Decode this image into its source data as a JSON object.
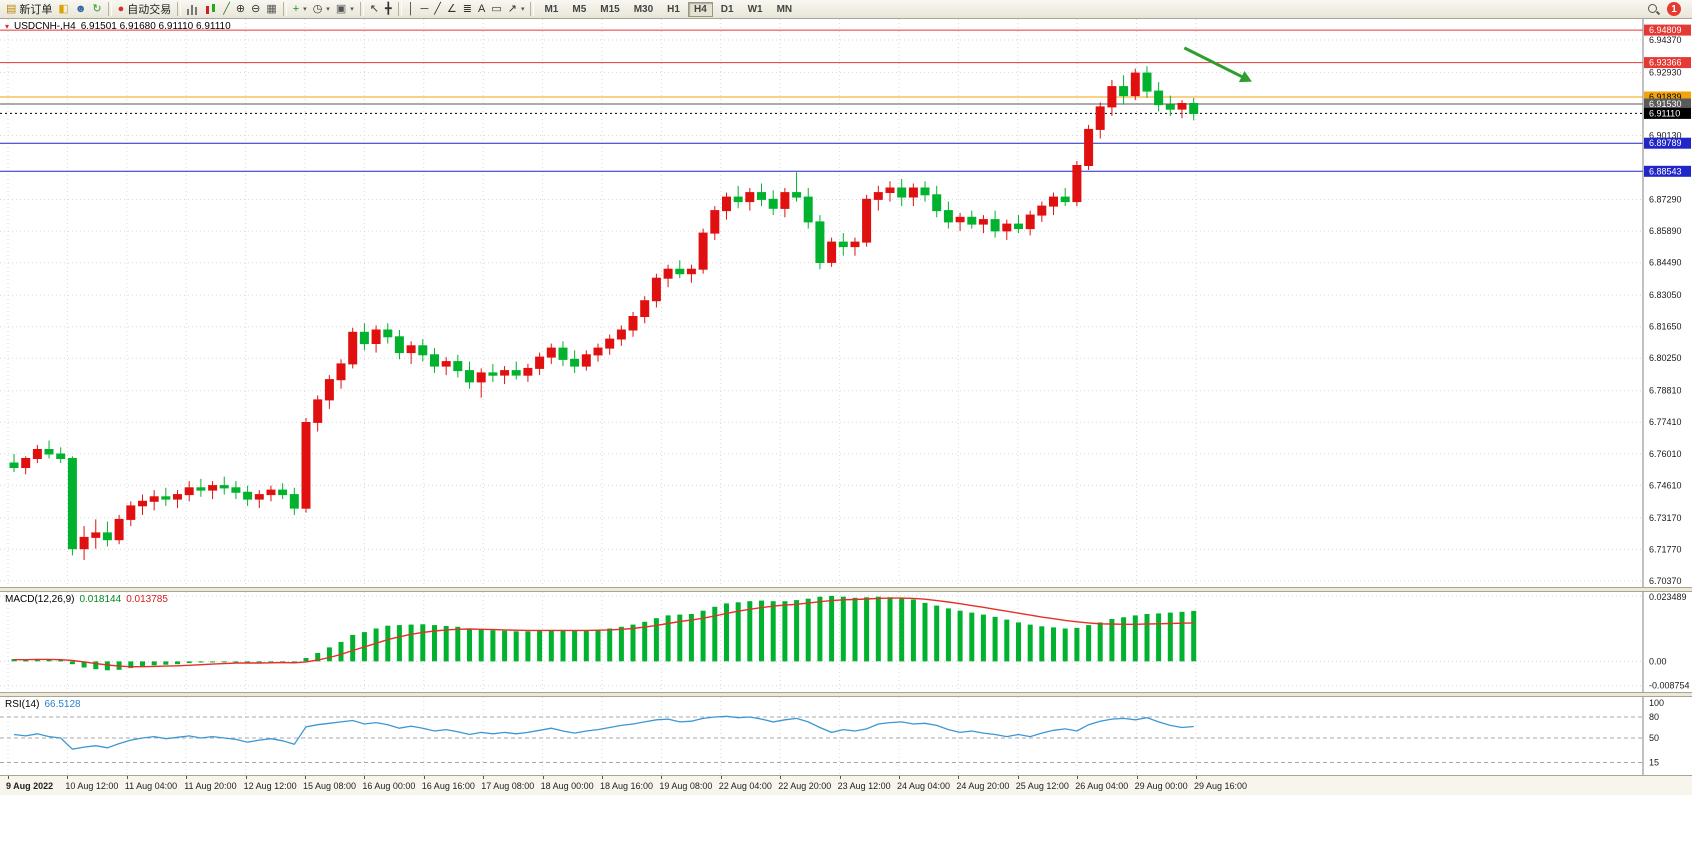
{
  "toolbar": {
    "timeframes": [
      "M1",
      "M5",
      "M15",
      "M30",
      "H1",
      "H4",
      "D1",
      "W1",
      "MN"
    ],
    "active_timeframe": "H4",
    "notification_count": "1",
    "items": [
      {
        "t": "btn",
        "name": "new-order",
        "glyph": "▤",
        "gc": "#b8860b",
        "label": "新订单"
      },
      {
        "t": "icon",
        "name": "new-chart",
        "glyph": "◧",
        "gc": "#d9a400"
      },
      {
        "t": "icon",
        "name": "profiles",
        "glyph": "☻",
        "gc": "#3465a4"
      },
      {
        "t": "icon",
        "name": "refresh",
        "glyph": "↻",
        "gc": "#2e9e2e"
      },
      {
        "t": "sep"
      },
      {
        "t": "btn",
        "name": "autotrade",
        "glyph": "●",
        "gc": "#d32f2f",
        "label": "自动交易"
      },
      {
        "t": "sep"
      },
      {
        "t": "css",
        "name": "bar-chart",
        "cls": "i-bars"
      },
      {
        "t": "css",
        "name": "candlestick-chart",
        "cls": "i-candles"
      },
      {
        "t": "icon",
        "name": "line-chart",
        "glyph": "╱",
        "gc": "#2e7d32"
      },
      {
        "t": "icon",
        "name": "zoom-in",
        "glyph": "⊕",
        "gc": "#333333"
      },
      {
        "t": "icon",
        "name": "zoom-out",
        "glyph": "⊖",
        "gc": "#333333"
      },
      {
        "t": "icon",
        "name": "tile-windows",
        "glyph": "▦",
        "gc": "#555555"
      },
      {
        "t": "sep"
      },
      {
        "t": "icon",
        "name": "indicators",
        "glyph": "+",
        "gc": "#1c8a1c",
        "caret": true
      },
      {
        "t": "icon",
        "name": "periods",
        "glyph": "◷",
        "gc": "#333333",
        "caret": true
      },
      {
        "t": "icon",
        "name": "templates",
        "glyph": "▣",
        "gc": "#555555",
        "caret": true
      },
      {
        "t": "sep"
      },
      {
        "t": "icon",
        "name": "cursor",
        "glyph": "↖",
        "gc": "#333333"
      },
      {
        "t": "icon",
        "name": "crosshair",
        "glyph": "╋",
        "gc": "#333333"
      },
      {
        "t": "sep"
      },
      {
        "t": "icon",
        "name": "vertical-line",
        "glyph": "│",
        "gc": "#333333"
      },
      {
        "t": "icon",
        "name": "horizontal-line",
        "glyph": "─",
        "gc": "#333333"
      },
      {
        "t": "icon",
        "name": "trendline",
        "glyph": "╱",
        "gc": "#333333"
      },
      {
        "t": "icon",
        "name": "equidistant-channel",
        "glyph": "∠",
        "gc": "#333333"
      },
      {
        "t": "icon",
        "name": "fibonacci",
        "glyph": "≣",
        "gc": "#333333"
      },
      {
        "t": "icon",
        "name": "text",
        "glyph": "A",
        "gc": "#333333"
      },
      {
        "t": "icon",
        "name": "text-label",
        "glyph": "▭",
        "gc": "#333333"
      },
      {
        "t": "icon",
        "name": "arrows",
        "glyph": "↗",
        "gc": "#333333",
        "caret": true
      },
      {
        "t": "sep"
      },
      {
        "t": "tfs"
      },
      {
        "t": "spacer"
      },
      {
        "t": "css",
        "name": "search",
        "cls": "i-mag"
      },
      {
        "t": "badge",
        "name": "notification-badge",
        "label": "1"
      }
    ]
  },
  "price_panel": {
    "collapse_glyph": "▾",
    "symbol_title": "USDCNH-,H4",
    "ohlc": "6.91501 6.91680 6.91110 6.91110",
    "axis_ticks": [
      "6.94370",
      "6.92930",
      "6.90130",
      "6.87290",
      "6.85890",
      "6.84490",
      "6.83050",
      "6.81650",
      "6.80250",
      "6.78810",
      "6.77410",
      "6.76010",
      "6.74610",
      "6.73170",
      "6.71770",
      "6.70370"
    ],
    "levels": [
      {
        "price": 6.94809,
        "label": "6.94809",
        "color": "#e53935",
        "text_color": "#ffffff",
        "style": "solid"
      },
      {
        "price": 6.93366,
        "label": "6.93366",
        "color": "#e53935",
        "text_color": "#ffffff",
        "style": "solid"
      },
      {
        "price": 6.91839,
        "label": "6.91839",
        "color": "#f0a30a",
        "text_color": "#000000",
        "style": "solid"
      },
      {
        "price": 6.9153,
        "label": "6.91530",
        "color": "#5a5a5a",
        "text_color": "#ffffff",
        "style": "solid"
      },
      {
        "price": 6.9111,
        "label": "6.91110",
        "color": "#000000",
        "text_color": "#ffffff",
        "style": "dotted"
      },
      {
        "price": 6.89789,
        "label": "6.89789",
        "color": "#2026c8",
        "text_color": "#ffffff",
        "style": "solid"
      },
      {
        "price": 6.88543,
        "label": "6.88543",
        "color": "#2026c8",
        "text_color": "#ffffff",
        "style": "solid"
      }
    ]
  },
  "macd_panel": {
    "label": "MACD(12,26,9)",
    "value_main": "0.018144",
    "value_signal": "0.013785",
    "axis_ticks": [
      "0.023489",
      "0.00",
      "-0.008754"
    ]
  },
  "rsi_panel": {
    "label": "RSI(14)",
    "value": "66.5128",
    "axis_ticks": [
      "100",
      "80",
      "50",
      "15"
    ]
  },
  "time_axis": {
    "labels": [
      "9 Aug 2022",
      "10 Aug 12:00",
      "11 Aug 04:00",
      "11 Aug 20:00",
      "12 Aug 12:00",
      "15 Aug 08:00",
      "16 Aug 00:00",
      "16 Aug 16:00",
      "17 Aug 08:00",
      "18 Aug 00:00",
      "18 Aug 16:00",
      "19 Aug 08:00",
      "22 Aug 04:00",
      "22 Aug 20:00",
      "23 Aug 12:00",
      "24 Aug 04:00",
      "24 Aug 20:00",
      "25 Aug 12:00",
      "26 Aug 04:00",
      "29 Aug 00:00",
      "29 Aug 16:00"
    ]
  },
  "chart_data": {
    "type": "candlestick",
    "symbol": "USDCNH",
    "timeframe": "H4",
    "up_color": "#e01010",
    "down_color": "#00b22d",
    "price_axis": {
      "min": 6.701,
      "max": 6.953,
      "ticks": [
        6.9437,
        6.9293,
        6.9013,
        6.8729,
        6.8589,
        6.8449,
        6.8305,
        6.8165,
        6.8025,
        6.7881,
        6.7741,
        6.7601,
        6.7461,
        6.7317,
        6.7177,
        6.7037
      ]
    },
    "candles": [
      [
        6.756,
        6.76,
        6.752,
        6.754
      ],
      [
        6.754,
        6.759,
        6.751,
        6.758
      ],
      [
        6.758,
        6.764,
        6.756,
        6.762
      ],
      [
        6.762,
        6.766,
        6.758,
        6.76
      ],
      [
        6.76,
        6.763,
        6.756,
        6.758
      ],
      [
        6.758,
        6.759,
        6.715,
        6.718
      ],
      [
        6.718,
        6.728,
        6.713,
        6.723
      ],
      [
        6.723,
        6.731,
        6.718,
        6.725
      ],
      [
        6.725,
        6.73,
        6.719,
        6.722
      ],
      [
        6.722,
        6.733,
        6.72,
        6.731
      ],
      [
        6.731,
        6.739,
        6.728,
        6.737
      ],
      [
        6.737,
        6.742,
        6.733,
        6.739
      ],
      [
        6.739,
        6.744,
        6.735,
        6.741
      ],
      [
        6.741,
        6.745,
        6.737,
        6.74
      ],
      [
        6.74,
        6.744,
        6.736,
        6.742
      ],
      [
        6.742,
        6.748,
        6.739,
        6.745
      ],
      [
        6.745,
        6.749,
        6.741,
        6.744
      ],
      [
        6.744,
        6.748,
        6.74,
        6.746
      ],
      [
        6.746,
        6.75,
        6.742,
        6.745
      ],
      [
        6.745,
        6.748,
        6.74,
        6.743
      ],
      [
        6.743,
        6.746,
        6.737,
        6.74
      ],
      [
        6.74,
        6.744,
        6.736,
        6.742
      ],
      [
        6.742,
        6.746,
        6.739,
        6.744
      ],
      [
        6.744,
        6.747,
        6.74,
        6.742
      ],
      [
        6.742,
        6.745,
        6.733,
        6.736
      ],
      [
        6.736,
        6.776,
        6.734,
        6.774
      ],
      [
        6.774,
        6.786,
        6.77,
        6.784
      ],
      [
        6.784,
        6.795,
        6.78,
        6.793
      ],
      [
        6.793,
        6.802,
        6.789,
        6.8
      ],
      [
        6.8,
        6.816,
        6.798,
        6.814
      ],
      [
        6.814,
        6.818,
        6.806,
        6.809
      ],
      [
        6.809,
        6.817,
        6.805,
        6.815
      ],
      [
        6.815,
        6.818,
        6.809,
        6.812
      ],
      [
        6.812,
        6.815,
        6.802,
        6.805
      ],
      [
        6.805,
        6.81,
        6.8,
        6.808
      ],
      [
        6.808,
        6.811,
        6.801,
        6.804
      ],
      [
        6.804,
        6.807,
        6.796,
        6.799
      ],
      [
        6.799,
        6.803,
        6.795,
        6.801
      ],
      [
        6.801,
        6.804,
        6.794,
        6.797
      ],
      [
        6.797,
        6.801,
        6.789,
        6.792
      ],
      [
        6.792,
        6.798,
        6.785,
        6.796
      ],
      [
        6.796,
        6.8,
        6.792,
        6.795
      ],
      [
        6.795,
        6.799,
        6.791,
        6.797
      ],
      [
        6.797,
        6.801,
        6.793,
        6.795
      ],
      [
        6.795,
        6.8,
        6.792,
        6.798
      ],
      [
        6.798,
        6.805,
        6.795,
        6.803
      ],
      [
        6.803,
        6.809,
        6.8,
        6.807
      ],
      [
        6.807,
        6.81,
        6.799,
        6.802
      ],
      [
        6.802,
        6.806,
        6.796,
        6.799
      ],
      [
        6.799,
        6.806,
        6.797,
        6.804
      ],
      [
        6.804,
        6.809,
        6.801,
        6.807
      ],
      [
        6.807,
        6.813,
        6.804,
        6.811
      ],
      [
        6.811,
        6.817,
        6.808,
        6.815
      ],
      [
        6.815,
        6.823,
        6.812,
        6.821
      ],
      [
        6.821,
        6.83,
        6.818,
        6.828
      ],
      [
        6.828,
        6.84,
        6.825,
        6.838
      ],
      [
        6.838,
        6.844,
        6.834,
        6.842
      ],
      [
        6.842,
        6.846,
        6.838,
        6.84
      ],
      [
        6.84,
        6.844,
        6.836,
        6.842
      ],
      [
        6.842,
        6.86,
        6.84,
        6.858
      ],
      [
        6.858,
        6.87,
        6.855,
        6.868
      ],
      [
        6.868,
        6.876,
        6.864,
        6.874
      ],
      [
        6.874,
        6.879,
        6.869,
        6.872
      ],
      [
        6.872,
        6.878,
        6.868,
        6.876
      ],
      [
        6.876,
        6.88,
        6.87,
        6.873
      ],
      [
        6.873,
        6.877,
        6.866,
        6.869
      ],
      [
        6.869,
        6.878,
        6.865,
        6.876
      ],
      [
        6.876,
        6.885,
        6.872,
        6.874
      ],
      [
        6.874,
        6.878,
        6.86,
        6.863
      ],
      [
        6.863,
        6.866,
        6.842,
        6.845
      ],
      [
        6.845,
        6.856,
        6.843,
        6.854
      ],
      [
        6.854,
        6.858,
        6.848,
        6.852
      ],
      [
        6.852,
        6.856,
        6.848,
        6.854
      ],
      [
        6.854,
        6.875,
        6.852,
        6.873
      ],
      [
        6.873,
        6.879,
        6.868,
        6.876
      ],
      [
        6.876,
        6.881,
        6.872,
        6.878
      ],
      [
        6.878,
        6.882,
        6.87,
        6.874
      ],
      [
        6.874,
        6.88,
        6.87,
        6.878
      ],
      [
        6.878,
        6.881,
        6.872,
        6.875
      ],
      [
        6.875,
        6.879,
        6.865,
        6.868
      ],
      [
        6.868,
        6.872,
        6.86,
        6.863
      ],
      [
        6.863,
        6.867,
        6.859,
        6.865
      ],
      [
        6.865,
        6.868,
        6.86,
        6.862
      ],
      [
        6.862,
        6.866,
        6.858,
        6.864
      ],
      [
        6.864,
        6.868,
        6.856,
        6.859
      ],
      [
        6.859,
        6.864,
        6.855,
        6.862
      ],
      [
        6.862,
        6.866,
        6.858,
        6.86
      ],
      [
        6.86,
        6.868,
        6.857,
        6.866
      ],
      [
        6.866,
        6.872,
        6.863,
        6.87
      ],
      [
        6.87,
        6.876,
        6.866,
        6.874
      ],
      [
        6.874,
        6.878,
        6.87,
        6.872
      ],
      [
        6.872,
        6.89,
        6.87,
        6.888
      ],
      [
        6.888,
        6.906,
        6.886,
        6.904
      ],
      [
        6.904,
        6.916,
        6.9,
        6.914
      ],
      [
        6.914,
        6.926,
        6.91,
        6.923
      ],
      [
        6.923,
        6.928,
        6.915,
        6.919
      ],
      [
        6.919,
        6.931,
        6.917,
        6.929
      ],
      [
        6.929,
        6.932,
        6.918,
        6.921
      ],
      [
        6.921,
        6.925,
        6.912,
        6.915
      ],
      [
        6.915,
        6.919,
        6.91,
        6.913
      ],
      [
        6.913,
        6.917,
        6.909,
        6.9155
      ],
      [
        6.9155,
        6.918,
        6.908,
        6.9111
      ]
    ],
    "macd": {
      "ymax": 0.0249,
      "ymin": -0.011,
      "ticks": [
        0.023489,
        0,
        -0.008754
      ],
      "hist_color": "#00b22d",
      "signal_color": "#e53027",
      "hist": [
        0.0008,
        0.0006,
        0.0008,
        0.0007,
        0.0005,
        -0.001,
        -0.0022,
        -0.0028,
        -0.0032,
        -0.003,
        -0.0024,
        -0.0018,
        -0.0014,
        -0.0012,
        -0.001,
        -0.0006,
        -0.0004,
        -0.0002,
        0.0,
        0.0,
        -0.0004,
        -0.0004,
        -0.0002,
        -0.0002,
        -0.0006,
        0.0012,
        0.003,
        0.005,
        0.007,
        0.0095,
        0.0105,
        0.0118,
        0.0128,
        0.013,
        0.0132,
        0.0133,
        0.013,
        0.0127,
        0.0124,
        0.0118,
        0.0114,
        0.0112,
        0.011,
        0.0108,
        0.0108,
        0.011,
        0.0113,
        0.0112,
        0.011,
        0.0111,
        0.0114,
        0.0118,
        0.0124,
        0.0132,
        0.0142,
        0.0155,
        0.0165,
        0.0168,
        0.017,
        0.0182,
        0.0196,
        0.0208,
        0.0212,
        0.0216,
        0.0218,
        0.0216,
        0.0216,
        0.022,
        0.0225,
        0.0232,
        0.0235,
        0.0232,
        0.0228,
        0.023,
        0.0232,
        0.023,
        0.0226,
        0.0222,
        0.021,
        0.02,
        0.019,
        0.0182,
        0.0175,
        0.0168,
        0.016,
        0.015,
        0.014,
        0.0132,
        0.0126,
        0.0122,
        0.0118,
        0.012,
        0.013,
        0.014,
        0.0152,
        0.0158,
        0.0165,
        0.017,
        0.0172,
        0.0175,
        0.0178,
        0.0181
      ],
      "signal": [
        0.0006,
        0.0006,
        0.0007,
        0.0007,
        0.0006,
        0.0003,
        -0.0002,
        -0.0008,
        -0.0013,
        -0.0017,
        -0.0019,
        -0.0019,
        -0.0018,
        -0.0017,
        -0.0016,
        -0.0014,
        -0.0012,
        -0.001,
        -0.0008,
        -0.0006,
        -0.0006,
        -0.0006,
        -0.0005,
        -0.0004,
        -0.0005,
        -0.0002,
        0.0005,
        0.0014,
        0.0025,
        0.0039,
        0.0052,
        0.0065,
        0.0078,
        0.0088,
        0.0097,
        0.0104,
        0.0109,
        0.0113,
        0.0115,
        0.0116,
        0.0115,
        0.0114,
        0.0113,
        0.0112,
        0.0111,
        0.0111,
        0.0111,
        0.0111,
        0.0111,
        0.0111,
        0.0112,
        0.0113,
        0.0115,
        0.0118,
        0.0123,
        0.0129,
        0.0136,
        0.0143,
        0.0148,
        0.0155,
        0.0163,
        0.0172,
        0.018,
        0.0187,
        0.0193,
        0.0198,
        0.0202,
        0.0205,
        0.0209,
        0.0214,
        0.0218,
        0.0221,
        0.0222,
        0.0224,
        0.0226,
        0.0227,
        0.0227,
        0.0226,
        0.0223,
        0.0218,
        0.0213,
        0.0207,
        0.02,
        0.0194,
        0.0187,
        0.018,
        0.0173,
        0.0166,
        0.0159,
        0.0153,
        0.0147,
        0.0142,
        0.0138,
        0.0135,
        0.0134,
        0.0133,
        0.0133,
        0.0134,
        0.0135,
        0.0136,
        0.0137,
        0.0138
      ]
    },
    "rsi": {
      "color": "#3b97d3",
      "levels": [
        80,
        50,
        15
      ],
      "values": [
        55,
        53,
        56,
        52,
        50,
        34,
        37,
        39,
        36,
        42,
        47,
        50,
        52,
        49,
        51,
        53,
        50,
        52,
        50,
        48,
        44,
        47,
        49,
        46,
        41,
        66,
        69,
        71,
        73,
        75,
        70,
        72,
        69,
        64,
        67,
        64,
        60,
        62,
        59,
        55,
        58,
        56,
        58,
        56,
        58,
        61,
        64,
        60,
        57,
        60,
        62,
        65,
        68,
        70,
        73,
        76,
        77,
        73,
        74,
        78,
        80,
        81,
        79,
        80,
        77,
        73,
        76,
        78,
        73,
        65,
        58,
        62,
        60,
        63,
        70,
        72,
        73,
        70,
        71,
        68,
        62,
        58,
        60,
        57,
        55,
        52,
        55,
        52,
        57,
        61,
        63,
        60,
        69,
        74,
        77,
        78,
        76,
        79,
        73,
        68,
        65,
        66.5
      ]
    },
    "annotations": [
      {
        "type": "arrow",
        "from_index": 100.2,
        "from_price": 6.9402,
        "to_index": 105.6,
        "to_price": 6.9262,
        "color": "#2e9e2e"
      }
    ]
  }
}
